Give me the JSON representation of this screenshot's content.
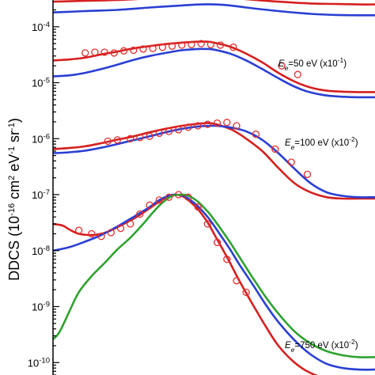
{
  "chart_data": {
    "type": "line",
    "ylabel": {
      "main": "DDCS (10",
      "exp1": "-16",
      "mid1": " cm",
      "exp2": "2",
      "mid2": " eV",
      "exp3": "-1",
      "mid3": " sr",
      "exp4": "-1",
      "tail": ")"
    },
    "yscale": "log",
    "ylim": [
      6e-11,
      0.0003
    ],
    "xlim": [
      0,
      100
    ],
    "yticks": [
      {
        "value": 0.0001,
        "base": "10",
        "exp": "-4"
      },
      {
        "value": 1e-05,
        "base": "10",
        "exp": "-5"
      },
      {
        "value": 1e-06,
        "base": "10",
        "exp": "-6"
      },
      {
        "value": 1e-07,
        "base": "10",
        "exp": "-7"
      },
      {
        "value": 1e-08,
        "base": "10",
        "exp": "-8"
      },
      {
        "value": 1e-09,
        "base": "10",
        "exp": "-9"
      },
      {
        "value": 1e-10,
        "base": "10",
        "exp": "-10"
      }
    ],
    "annotations": [
      {
        "sym": "E",
        "sub": "e",
        "rest": "=50 eV (x10",
        "exp": "-1",
        "close": ")",
        "x": 70,
        "y": 1.95e-05
      },
      {
        "sym": "E",
        "sub": "e",
        "rest": "=100 eV (x10",
        "exp": "-2",
        "close": ")",
        "x": 72,
        "y": 7.5e-07
      },
      {
        "sym": "E",
        "sub": "e",
        "rest": "=750 eV (x10",
        "exp": "-2",
        "close": ")",
        "x": 72,
        "y": 1.8e-10
      }
    ],
    "colors": {
      "red": "#d62020",
      "blue": "#2a3fd4",
      "green": "#2ea32e",
      "points": "#e03030"
    },
    "series": [
      {
        "color": "red",
        "x": [
          0,
          5,
          10,
          20,
          30,
          40,
          46,
          50,
          55,
          60,
          70,
          80,
          88,
          95,
          100
        ],
        "values": [
          0.00028,
          0.000285,
          0.00029,
          0.0003,
          0.00032,
          0.00034,
          0.00035,
          0.000345,
          0.00033,
          0.00031,
          0.00028,
          0.00026,
          0.000255,
          0.00025,
          0.00025
        ]
      },
      {
        "color": "blue",
        "x": [
          0,
          5,
          10,
          20,
          30,
          40,
          46,
          50,
          55,
          60,
          70,
          80,
          88,
          95,
          100
        ],
        "values": [
          0.00018,
          0.000185,
          0.00019,
          0.0002,
          0.00022,
          0.00024,
          0.00025,
          0.00025,
          0.00024,
          0.00022,
          0.00019,
          0.00017,
          0.000162,
          0.00016,
          0.00016
        ]
      },
      {
        "color": "red",
        "x": [
          0,
          5,
          10,
          15,
          20,
          25,
          30,
          35,
          40,
          45,
          48,
          50,
          55,
          60,
          65,
          70,
          75,
          80,
          85,
          90,
          95,
          100
        ],
        "values": [
          2.5e-05,
          2.6e-05,
          2.8e-05,
          3.2e-05,
          3.6e-05,
          4.1e-05,
          4.5e-05,
          4.9e-05,
          5.2e-05,
          5.4e-05,
          5.4e-05,
          5.2e-05,
          4.4e-05,
          3.3e-05,
          2.3e-05,
          1.5e-05,
          1.05e-05,
          8.2e-06,
          7.2e-06,
          6.9e-06,
          6.8e-06,
          6.8e-06
        ]
      },
      {
        "color": "blue",
        "x": [
          0,
          5,
          10,
          15,
          20,
          25,
          30,
          35,
          40,
          45,
          48,
          50,
          55,
          60,
          65,
          70,
          75,
          80,
          85,
          90,
          95,
          100
        ],
        "values": [
          1.3e-05,
          1.35e-05,
          1.5e-05,
          1.75e-05,
          2.1e-05,
          2.55e-05,
          3e-05,
          3.4e-05,
          3.8e-05,
          4e-05,
          4e-05,
          3.9e-05,
          3.3e-05,
          2.5e-05,
          1.75e-05,
          1.2e-05,
          8.5e-06,
          6.7e-06,
          5.9e-06,
          5.6e-06,
          5.5e-06,
          5.5e-06
        ]
      },
      {
        "color": "points",
        "points": true,
        "x": [
          10,
          13,
          16,
          19,
          22,
          25,
          28,
          31,
          34,
          37,
          40,
          43,
          46,
          49,
          52,
          56,
          71,
          76
        ],
        "values": [
          3.4e-05,
          3.5e-05,
          3.5e-05,
          3.4e-05,
          3.7e-05,
          3.8e-05,
          4e-05,
          4.1e-05,
          4.3e-05,
          4.5e-05,
          4.7e-05,
          4.8e-05,
          5e-05,
          4.8e-05,
          4.7e-05,
          4.3e-05,
          2e-05,
          1.4e-05
        ]
      },
      {
        "color": "red",
        "x": [
          0,
          5,
          10,
          15,
          20,
          25,
          30,
          35,
          40,
          45,
          48,
          50,
          53,
          56,
          60,
          65,
          70,
          75,
          80,
          85,
          90,
          95,
          100
        ],
        "values": [
          6.5e-07,
          6.8e-07,
          7.3e-07,
          8.3e-07,
          9.6e-07,
          1.1e-06,
          1.3e-06,
          1.5e-06,
          1.7e-06,
          1.85e-06,
          1.9e-06,
          1.85e-06,
          1.65e-06,
          1.4e-06,
          1e-06,
          6e-07,
          3e-07,
          1.6e-07,
          1.1e-07,
          9e-08,
          8.5e-08,
          8.5e-08,
          8.5e-08
        ]
      },
      {
        "color": "blue",
        "x": [
          0,
          5,
          10,
          15,
          20,
          25,
          30,
          35,
          40,
          45,
          50,
          53,
          56,
          60,
          65,
          70,
          75,
          80,
          85,
          90,
          95,
          100
        ],
        "values": [
          5.5e-07,
          5.7e-07,
          6.1e-07,
          6.9e-07,
          8e-07,
          9.4e-07,
          1.1e-06,
          1.3e-06,
          1.5e-06,
          1.65e-06,
          1.7e-06,
          1.65e-06,
          1.55e-06,
          1.35e-06,
          9.5e-07,
          5.5e-07,
          2.9e-07,
          1.6e-07,
          1.1e-07,
          9.5e-08,
          9e-08,
          9e-08
        ]
      },
      {
        "color": "points",
        "points": true,
        "x": [
          17,
          20,
          24,
          27,
          30,
          33,
          36,
          39,
          42,
          45,
          48,
          51,
          54,
          57,
          63,
          69,
          74,
          79
        ],
        "values": [
          9e-07,
          9.5e-07,
          1e-06,
          1.05e-06,
          1.1e-06,
          1.25e-06,
          1.35e-06,
          1.45e-06,
          1.6e-06,
          1.7e-06,
          1.8e-06,
          1.9e-06,
          1.95e-06,
          1.7e-06,
          1.2e-06,
          6.5e-07,
          3.8e-07,
          2.3e-07
        ]
      },
      {
        "color": "red",
        "x": [
          0,
          3,
          5,
          8,
          12,
          15,
          18,
          22,
          26,
          30,
          33,
          36,
          38,
          40,
          42,
          45,
          48,
          50,
          52,
          55,
          58,
          62,
          66,
          70,
          75,
          80,
          85,
          90,
          95,
          100
        ],
        "values": [
          3e-08,
          2.8e-08,
          2.4e-08,
          2e-08,
          1.9e-08,
          2e-08,
          2.3e-08,
          3e-08,
          4e-08,
          5.7e-08,
          7.5e-08,
          9.5e-08,
          1e-07,
          9.5e-08,
          8e-08,
          5.5e-08,
          3.2e-08,
          2e-08,
          1.25e-08,
          6e-09,
          2.8e-09,
          1.1e-09,
          4.5e-10,
          2e-10,
          1e-10,
          6.5e-11,
          5.2e-11,
          4.8e-11,
          4.7e-11,
          4.7e-11
        ]
      },
      {
        "color": "blue",
        "x": [
          0,
          5,
          10,
          15,
          20,
          25,
          30,
          33,
          36,
          38,
          40,
          42,
          45,
          48,
          50,
          52,
          55,
          58,
          62,
          66,
          70,
          75,
          80,
          85,
          90,
          95,
          100
        ],
        "values": [
          1e-08,
          1.15e-08,
          1.45e-08,
          1.9e-08,
          2.7e-08,
          4e-08,
          6e-08,
          8e-08,
          9.6e-08,
          1e-07,
          9.7e-08,
          8.5e-08,
          6.2e-08,
          4e-08,
          2.8e-08,
          1.9e-08,
          1.05e-08,
          5.5e-09,
          2.5e-09,
          1.1e-09,
          5.3e-10,
          2.5e-10,
          1.4e-10,
          9.5e-11,
          8e-11,
          7.5e-11,
          7.5e-11
        ]
      },
      {
        "color": "green",
        "x": [
          0,
          2,
          5,
          8,
          12,
          16,
          20,
          24,
          28,
          31,
          34,
          37,
          40,
          42,
          45,
          48,
          50,
          52,
          55,
          58,
          62,
          66,
          70,
          75,
          80,
          85,
          90,
          95,
          100
        ],
        "values": [
          2.6e-10,
          3.5e-10,
          8e-10,
          1.8e-09,
          3.5e-09,
          6e-09,
          1.05e-08,
          1.7e-08,
          3e-08,
          4.8e-08,
          7.2e-08,
          9.5e-08,
          1e-07,
          9.6e-08,
          7.5e-08,
          5e-08,
          3.6e-08,
          2.5e-08,
          1.4e-08,
          7.5e-09,
          3.3e-09,
          1.5e-09,
          7.5e-10,
          3.6e-10,
          2.2e-10,
          1.6e-10,
          1.35e-10,
          1.25e-10,
          1.25e-10
        ]
      },
      {
        "color": "points",
        "points": true,
        "x": [
          8,
          12,
          15,
          18,
          21,
          24,
          27,
          30,
          33,
          36,
          39,
          42,
          45,
          48,
          51,
          54,
          57,
          60
        ],
        "values": [
          2.3e-08,
          2e-08,
          1.8e-08,
          2.1e-08,
          2.5e-08,
          3e-08,
          4.5e-08,
          6.5e-08,
          8e-08,
          9e-08,
          1e-07,
          9e-08,
          6e-08,
          3e-08,
          1.4e-08,
          7e-09,
          2.9e-09,
          1.8e-09
        ]
      }
    ]
  }
}
